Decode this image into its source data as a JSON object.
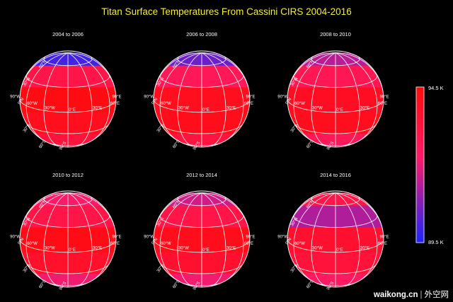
{
  "chart_data": {
    "type": "heatmap",
    "title": "Titan Surface Temperatures From Cassini CIRS 2004-2016",
    "colorbar": {
      "max_label": "94.5 K",
      "min_label": "89.5 K",
      "max": 94.5,
      "min": 89.5,
      "colors": {
        "max": "#ff0a0a",
        "mid": "#ff1a66",
        "min": "#1a24ff"
      }
    },
    "grid_labels": {
      "lon": [
        "90°W",
        "60°W",
        "30°W",
        "0°E",
        "30°E",
        "60°E",
        "90°E"
      ],
      "lat": [
        "60°N",
        "30°N",
        "0°N",
        "30°S",
        "60°S",
        "90°S"
      ]
    },
    "latitude_bands": [
      75,
      45,
      15,
      -15,
      -45,
      -75
    ],
    "panels": [
      {
        "label": "2004 to 2006",
        "temps": [
          90.0,
          93.0,
          94.3,
          94.0,
          93.3,
          null
        ]
      },
      {
        "label": "2006 to 2008",
        "temps": [
          90.5,
          92.6,
          94.0,
          94.1,
          93.2,
          92.1
        ]
      },
      {
        "label": "2008 to 2010",
        "temps": [
          91.4,
          92.7,
          93.9,
          94.0,
          92.6,
          91.2
        ]
      },
      {
        "label": "2010 to 2012",
        "temps": [
          92.2,
          93.0,
          94.2,
          93.7,
          92.1,
          91.0
        ]
      },
      {
        "label": "2012 to 2014",
        "temps": [
          91.7,
          93.0,
          94.1,
          93.6,
          92.1,
          91.0
        ]
      },
      {
        "label": "2014 to 2016",
        "temps": [
          93.0,
          91.3,
          93.6,
          93.3,
          92.4,
          null
        ]
      }
    ]
  },
  "watermark": {
    "brand": "waikong.cn",
    "separator": "|",
    "site": "外空网"
  }
}
